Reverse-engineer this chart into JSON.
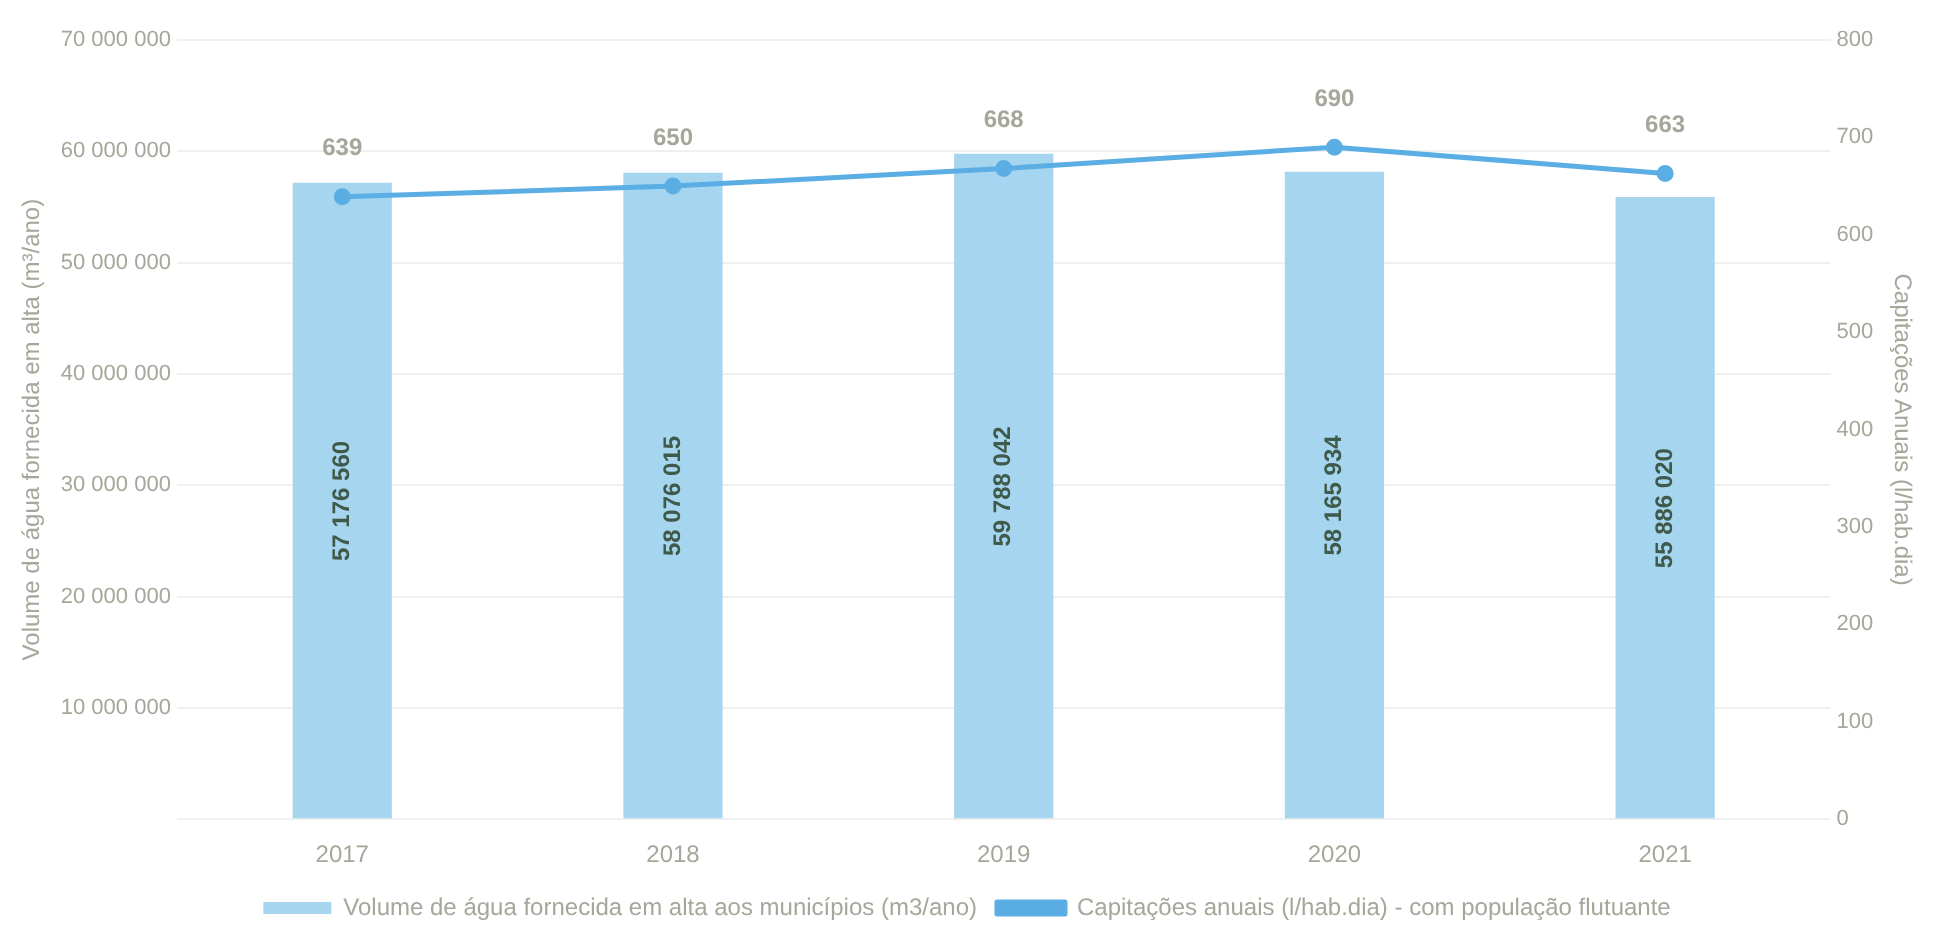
{
  "chart_data": {
    "type": "bar",
    "ylabel": "Volume de água fornecida em alta (m³/ano)",
    "y2label": "Capitações Anuais (l/hab.dia)",
    "categories": [
      "2017",
      "2018",
      "2019",
      "2020",
      "2021"
    ],
    "series": [
      {
        "name": "Volume de água fornecida em alta aos municípios (m3/ano)",
        "color": "#a6d6ef",
        "values": [
          57176560,
          58076015,
          59788042,
          58165934,
          55886020
        ],
        "value_labels": [
          "57 176 560",
          "58 076 015",
          "59 788 042",
          "58 165 934",
          "55 886 020"
        ]
      },
      {
        "name": "Capitações anuais (l/hab.dia) - com população flutuante",
        "type": "line",
        "axis": "y2",
        "color": "#5aaee3",
        "marker": "circle",
        "values": [
          639,
          650,
          668,
          690,
          663
        ],
        "value_labels": [
          "639",
          "650",
          "668",
          "690",
          "663"
        ]
      }
    ],
    "ylim": [
      0,
      70000000
    ],
    "yticks": [
      {
        "value": 0,
        "label": null
      },
      {
        "value": 10000000,
        "label": "10 000 000"
      },
      {
        "value": 20000000,
        "label": "20 000 000"
      },
      {
        "value": 30000000,
        "label": "30 000 000"
      },
      {
        "value": 40000000,
        "label": "40 000 000"
      },
      {
        "value": 50000000,
        "label": "50 000 000"
      },
      {
        "value": 60000000,
        "label": "60 000 000"
      },
      {
        "value": 70000000,
        "label": "70 000 000"
      }
    ],
    "y2lim": [
      0,
      800
    ],
    "y2ticks": [
      0,
      100,
      200,
      300,
      400,
      500,
      600,
      700,
      800
    ],
    "grid": "y",
    "legend": "bottom"
  }
}
